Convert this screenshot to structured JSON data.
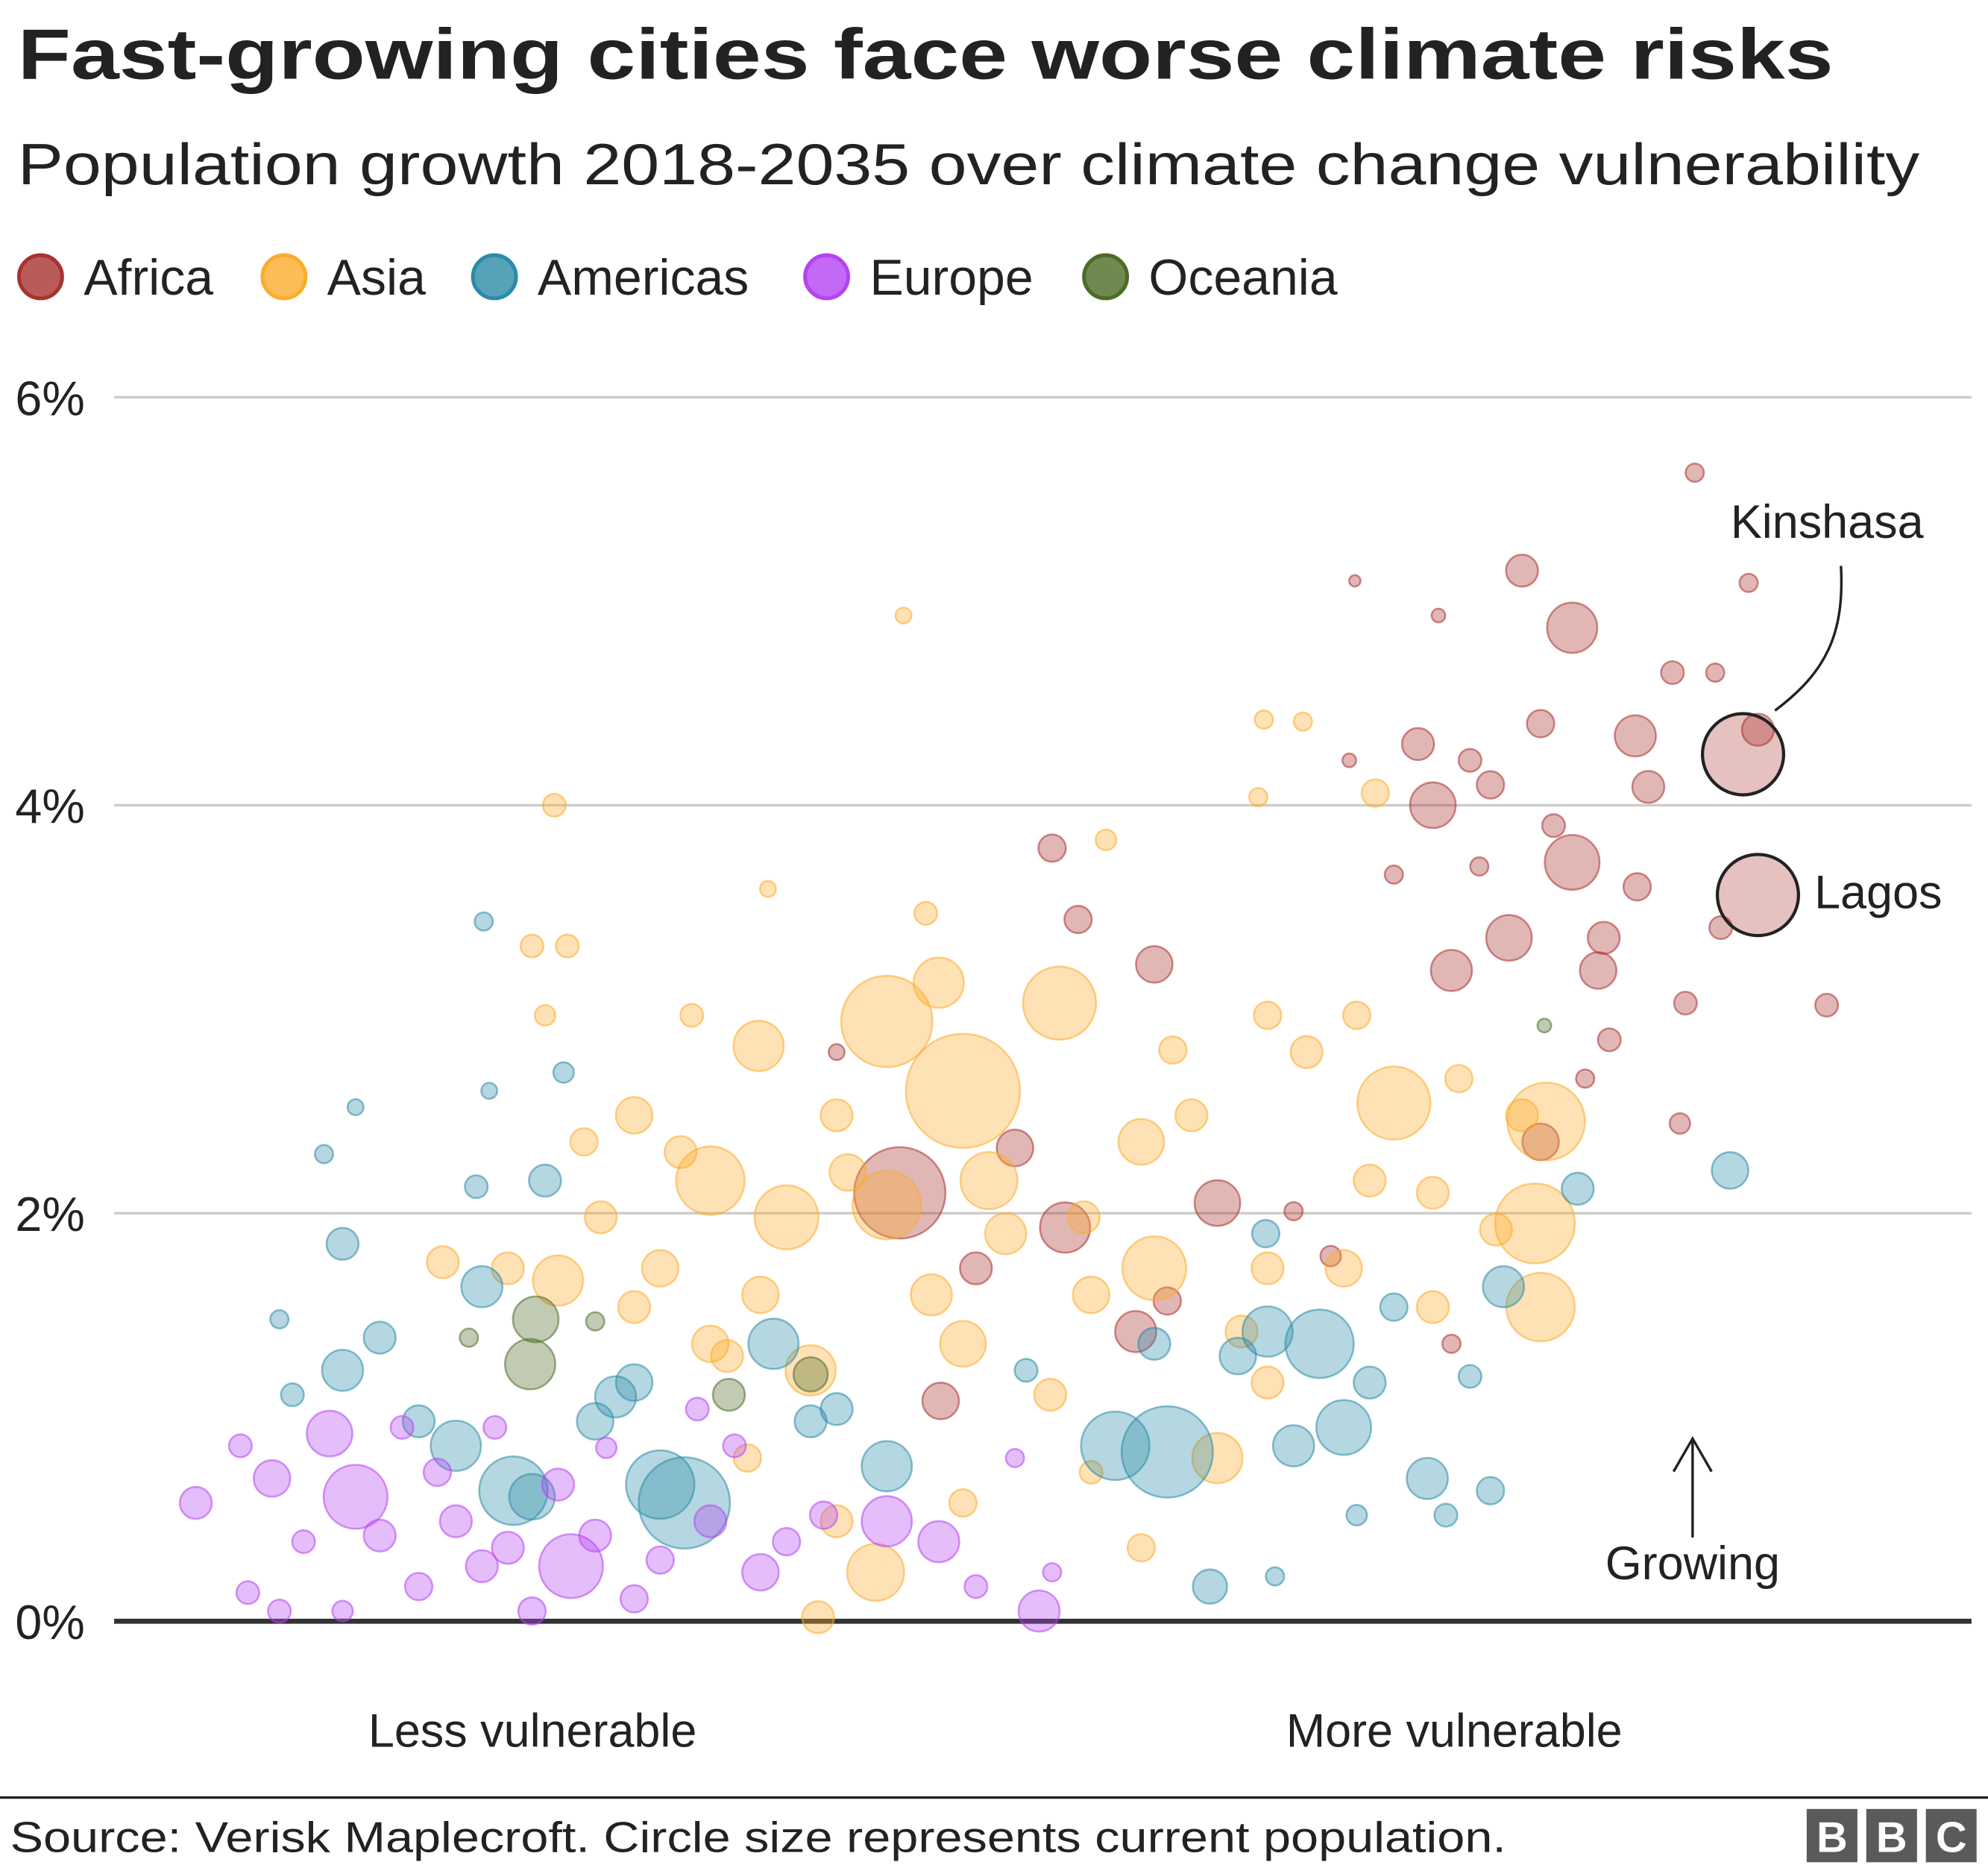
{
  "chart_data": {
    "type": "scatter",
    "title": "Fast-growing cities face worse climate risks",
    "subtitle": "Population growth 2018-2035 over climate change vulnerability",
    "xlabel_left": "Less vulnerable",
    "xlabel_right": "More vulnerable",
    "y_ticks": [
      "0%",
      "2%",
      "4%",
      "6%"
    ],
    "y_tick_values": [
      0,
      2,
      4,
      6
    ],
    "ylim": [
      0,
      6
    ],
    "xlim": [
      0,
      100
    ],
    "grid": true,
    "legend_position": "top-left",
    "point_format": [
      "vulnerability",
      "growth_pct",
      "relative_size"
    ],
    "series": [
      {
        "name": "Africa",
        "color": "#a8322f",
        "points": [
          [
            68.9,
            3.66,
            8
          ],
          [
            78.5,
            4.87,
            22
          ],
          [
            75.8,
            5.15,
            14
          ],
          [
            85.1,
            5.63,
            8
          ],
          [
            71.3,
            4.93,
            6
          ],
          [
            66.8,
            5.1,
            5
          ],
          [
            71,
            4.0,
            20
          ],
          [
            73,
            4.22,
            10
          ],
          [
            78.5,
            3.72,
            24
          ],
          [
            75.1,
            3.35,
            20
          ],
          [
            72,
            3.19,
            18
          ],
          [
            79.9,
            3.19,
            16
          ],
          [
            82.6,
            4.09,
            14
          ],
          [
            81.9,
            4.34,
            18
          ],
          [
            83.9,
            4.65,
            10
          ],
          [
            86.2,
            4.65,
            8
          ],
          [
            84.6,
            3.03,
            10
          ],
          [
            92.2,
            3.02,
            10
          ],
          [
            84.3,
            2.44,
            9
          ],
          [
            76.8,
            2.35,
            16
          ],
          [
            79.2,
            2.66,
            8
          ],
          [
            80.5,
            2.85,
            10
          ],
          [
            76.8,
            4.4,
            12
          ],
          [
            88,
            5.09,
            8
          ],
          [
            50.5,
            3.79,
            12
          ],
          [
            51.9,
            3.44,
            12
          ],
          [
            56,
            3.22,
            16
          ],
          [
            42.3,
            2.1,
            40
          ],
          [
            48.5,
            2.32,
            16
          ],
          [
            51.2,
            1.93,
            22
          ],
          [
            59.4,
            2.05,
            20
          ],
          [
            46.4,
            1.73,
            14
          ],
          [
            44.5,
            1.08,
            16
          ],
          [
            55,
            1.42,
            18
          ],
          [
            56.7,
            1.57,
            12
          ],
          [
            63.5,
            2.01,
            8
          ],
          [
            65.5,
            1.79,
            9
          ],
          [
            72,
            1.36,
            8
          ],
          [
            38.9,
            2.79,
            7
          ],
          [
            80.2,
            3.35,
            14
          ],
          [
            70.2,
            4.3,
            14
          ],
          [
            74.1,
            4.1,
            12
          ],
          [
            77.5,
            3.9,
            10
          ],
          [
            82,
            3.6,
            12
          ],
          [
            86.5,
            3.4,
            10
          ],
          [
            73.5,
            3.7,
            8
          ],
          [
            88.5,
            4.37,
            14
          ],
          [
            66.5,
            4.22,
            6
          ]
        ]
      },
      {
        "name": "Asia",
        "color": "#fbac2c",
        "points": [
          [
            23.7,
            4.0,
            10
          ],
          [
            42.5,
            4.93,
            7
          ],
          [
            61.9,
            4.42,
            8
          ],
          [
            64.0,
            4.41,
            8
          ],
          [
            67.9,
            4.06,
            12
          ],
          [
            53.4,
            3.83,
            9
          ],
          [
            61.6,
            4.04,
            8
          ],
          [
            43.7,
            3.47,
            10
          ],
          [
            35.2,
            3.59,
            7
          ],
          [
            22.5,
            3.31,
            10
          ],
          [
            24.4,
            3.31,
            10
          ],
          [
            23.2,
            2.97,
            9
          ],
          [
            31.1,
            2.97,
            10
          ],
          [
            34.7,
            2.82,
            22
          ],
          [
            41.6,
            2.94,
            40
          ],
          [
            44.4,
            3.13,
            22
          ],
          [
            50.9,
            3.03,
            32
          ],
          [
            45.7,
            2.6,
            50
          ],
          [
            38.9,
            2.48,
            14
          ],
          [
            28,
            2.48,
            16
          ],
          [
            25.3,
            2.35,
            12
          ],
          [
            32.1,
            2.16,
            30
          ],
          [
            36.2,
            1.98,
            28
          ],
          [
            41.6,
            2.04,
            30
          ],
          [
            47.1,
            2.16,
            25
          ],
          [
            52.2,
            1.98,
            14
          ],
          [
            55.3,
            2.35,
            20
          ],
          [
            58,
            2.48,
            14
          ],
          [
            62.1,
            2.97,
            12
          ],
          [
            64.2,
            2.79,
            14
          ],
          [
            66.9,
            2.97,
            12
          ],
          [
            68.9,
            2.54,
            32
          ],
          [
            67.6,
            2.16,
            14
          ],
          [
            72.4,
            2.66,
            12
          ],
          [
            75.8,
            2.48,
            14
          ],
          [
            77.1,
            2.45,
            34
          ],
          [
            76.5,
            1.95,
            35
          ],
          [
            76.8,
            1.54,
            30
          ],
          [
            74.4,
            1.92,
            14
          ],
          [
            71,
            1.54,
            14
          ],
          [
            62.1,
            1.17,
            14
          ],
          [
            59.4,
            0.8,
            22
          ],
          [
            55.3,
            0.36,
            12
          ],
          [
            52.6,
            0.73,
            10
          ],
          [
            45.7,
            0.58,
            12
          ],
          [
            41,
            0.24,
            25
          ],
          [
            37.9,
            0.02,
            14
          ],
          [
            38.9,
            0.49,
            14
          ],
          [
            34.1,
            0.8,
            12
          ],
          [
            37.5,
            1.23,
            22
          ],
          [
            32.1,
            1.36,
            16
          ],
          [
            28,
            1.54,
            14
          ],
          [
            23.9,
            1.67,
            22
          ],
          [
            21.2,
            1.73,
            14
          ],
          [
            17.7,
            1.76,
            14
          ],
          [
            26.2,
            1.98,
            14
          ],
          [
            29.4,
            1.73,
            16
          ],
          [
            34.8,
            1.6,
            16
          ],
          [
            45.7,
            1.36,
            20
          ],
          [
            50.4,
            1.11,
            14
          ],
          [
            52.6,
            1.6,
            16
          ],
          [
            56,
            1.73,
            28
          ],
          [
            60.7,
            1.42,
            14
          ],
          [
            66.2,
            1.73,
            16
          ],
          [
            71,
            2.1,
            14
          ],
          [
            62.1,
            1.73,
            14
          ],
          [
            30.5,
            2.3,
            14
          ],
          [
            39.5,
            2.2,
            16
          ],
          [
            48,
            1.9,
            18
          ],
          [
            57,
            2.8,
            12
          ],
          [
            33,
            1.3,
            14
          ],
          [
            44,
            1.6,
            18
          ]
        ]
      },
      {
        "name": "Americas",
        "color": "#2b8ba8",
        "points": [
          [
            12.3,
            1.85,
            14
          ],
          [
            11.3,
            2.29,
            8
          ],
          [
            13,
            2.52,
            7
          ],
          [
            19.9,
            3.43,
            8
          ],
          [
            20.2,
            2.6,
            7
          ],
          [
            24.2,
            2.69,
            9
          ],
          [
            23.2,
            2.16,
            14
          ],
          [
            19.5,
            2.13,
            10
          ],
          [
            19.8,
            1.64,
            18
          ],
          [
            14.3,
            1.39,
            14
          ],
          [
            12.3,
            1.23,
            18
          ],
          [
            9.6,
            1.11,
            10
          ],
          [
            16.4,
            0.98,
            14
          ],
          [
            18.4,
            0.86,
            22
          ],
          [
            21.5,
            0.64,
            30
          ],
          [
            22.5,
            0.61,
            20
          ],
          [
            25.9,
            0.98,
            16
          ],
          [
            28,
            1.17,
            16
          ],
          [
            29.4,
            0.67,
            30
          ],
          [
            30.7,
            0.58,
            40
          ],
          [
            35.5,
            1.36,
            22
          ],
          [
            37.5,
            0.98,
            14
          ],
          [
            41.6,
            0.76,
            22
          ],
          [
            38.9,
            1.04,
            14
          ],
          [
            53.9,
            0.86,
            30
          ],
          [
            56.7,
            0.83,
            40
          ],
          [
            59.0,
            0.17,
            15
          ],
          [
            62.5,
            0.22,
            8
          ],
          [
            63.5,
            0.86,
            18
          ],
          [
            66.2,
            0.95,
            24
          ],
          [
            64.9,
            1.36,
            30
          ],
          [
            62.1,
            1.42,
            22
          ],
          [
            67.6,
            1.17,
            14
          ],
          [
            68.9,
            1.54,
            12
          ],
          [
            70.7,
            0.7,
            18
          ],
          [
            74.1,
            0.64,
            12
          ],
          [
            71.7,
            0.52,
            10
          ],
          [
            74.8,
            1.64,
            18
          ],
          [
            78.8,
            2.12,
            14
          ],
          [
            87.0,
            2.21,
            16
          ],
          [
            66.9,
            0.52,
            9
          ],
          [
            56,
            1.36,
            14
          ],
          [
            49.1,
            1.23,
            10
          ],
          [
            8.9,
            1.48,
            8
          ],
          [
            73,
            1.2,
            10
          ],
          [
            62,
            1.9,
            12
          ],
          [
            60.5,
            1.3,
            16
          ],
          [
            27,
            1.1,
            18
          ]
        ]
      },
      {
        "name": "Europe",
        "color": "#b443f2",
        "points": [
          [
            4.4,
            0.58,
            14
          ],
          [
            8.5,
            0.7,
            16
          ],
          [
            6.8,
            0.86,
            10
          ],
          [
            10.2,
            0.39,
            10
          ],
          [
            11.6,
            0.92,
            20
          ],
          [
            13,
            0.61,
            28
          ],
          [
            14.3,
            0.42,
            14
          ],
          [
            16.4,
            0.17,
            12
          ],
          [
            17.4,
            0.73,
            12
          ],
          [
            19.8,
            0.27,
            14
          ],
          [
            21.2,
            0.36,
            14
          ],
          [
            22.5,
            0.05,
            12
          ],
          [
            24.6,
            0.27,
            28
          ],
          [
            25.9,
            0.42,
            14
          ],
          [
            28,
            0.11,
            12
          ],
          [
            29.4,
            0.3,
            12
          ],
          [
            32.1,
            0.49,
            14
          ],
          [
            34.8,
            0.24,
            16
          ],
          [
            36.2,
            0.39,
            12
          ],
          [
            38.2,
            0.52,
            12
          ],
          [
            41.6,
            0.49,
            22
          ],
          [
            44.4,
            0.39,
            18
          ],
          [
            46.4,
            0.17,
            10
          ],
          [
            49.8,
            0.05,
            18
          ],
          [
            50.5,
            0.24,
            8
          ],
          [
            8.9,
            0.05,
            10
          ],
          [
            12.3,
            0.05,
            9
          ],
          [
            18.4,
            0.49,
            14
          ],
          [
            23.9,
            0.67,
            14
          ],
          [
            31.4,
            1.04,
            10
          ],
          [
            33.4,
            0.86,
            10
          ],
          [
            48.5,
            0.8,
            8
          ],
          [
            7.2,
            0.14,
            10
          ],
          [
            15.5,
            0.95,
            10
          ],
          [
            20.5,
            0.95,
            10
          ],
          [
            26.5,
            0.85,
            9
          ]
        ]
      },
      {
        "name": "Oceania",
        "color": "#4c6b26",
        "points": [
          [
            22.7,
            1.48,
            20
          ],
          [
            22.4,
            1.26,
            22
          ],
          [
            33.1,
            1.11,
            14
          ],
          [
            37.5,
            1.21,
            15
          ],
          [
            25.9,
            1.47,
            8
          ],
          [
            19.1,
            1.39,
            8
          ],
          [
            77,
            2.92,
            6
          ]
        ]
      }
    ],
    "annotations": [
      {
        "label": "Kinshasa",
        "vulnerability": 87.7,
        "growth_pct": 4.25,
        "relative_size": 32
      },
      {
        "label": "Lagos",
        "vulnerability": 88.5,
        "growth_pct": 3.56,
        "relative_size": 32
      },
      {
        "label": "Growing"
      }
    ]
  },
  "footer": {
    "source": "Source: Verisk Maplecroft. Circle size represents current population.",
    "logo": "BBC"
  }
}
